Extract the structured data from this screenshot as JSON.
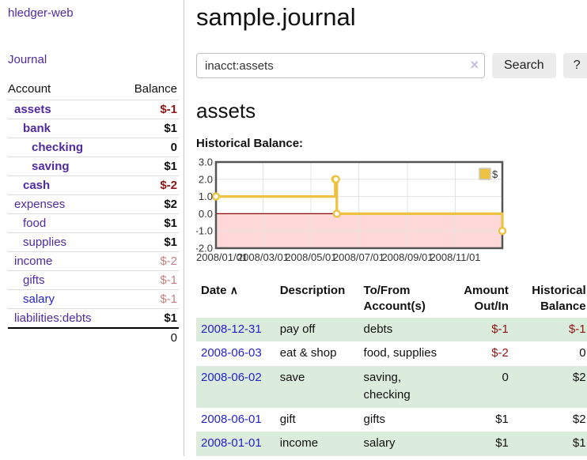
{
  "colors": {
    "purple": "#4f2aa3",
    "blue": "#2323cc",
    "dark_red": "#8f1414",
    "soft_red": "#c4807e",
    "row_stripe_green": "#dcecdc",
    "series_yellow": "#edc240",
    "negative_area_pink": "#ffd9d9",
    "zero_line_red": "#8b0000",
    "chart_border_gray": "#545454"
  },
  "sidebar": {
    "app_title": "hledger-web",
    "journal_link": "Journal",
    "accounts": {
      "headers": {
        "account": "Account",
        "balance": "Balance"
      },
      "rows": [
        {
          "name": "assets",
          "balance": "$-1"
        },
        {
          "name": "bank",
          "balance": "$1"
        },
        {
          "name": "checking",
          "balance": "0"
        },
        {
          "name": "saving",
          "balance": "$1"
        },
        {
          "name": "cash",
          "balance": "$-2"
        },
        {
          "name": "expenses",
          "balance": "$2"
        },
        {
          "name": "food",
          "balance": "$1"
        },
        {
          "name": "supplies",
          "balance": "$1"
        },
        {
          "name": "income",
          "balance": "$-2"
        },
        {
          "name": "gifts",
          "balance": "$-1"
        },
        {
          "name": "salary",
          "balance": "$-1"
        },
        {
          "name": "liabilities:debts",
          "balance": "$1"
        }
      ],
      "total": "0"
    }
  },
  "main": {
    "title": "sample.journal",
    "search": {
      "value": "inacct:assets",
      "clear_icon": "×",
      "search_button": "Search",
      "help_button": "?"
    },
    "account_heading": "assets",
    "chart_heading": "Historical Balance:"
  },
  "register": {
    "headers": [
      "Date",
      "Description",
      "To/From Account(s)",
      "Amount Out/In",
      "Historical Balance"
    ],
    "sort_icon": "∧",
    "rows": [
      {
        "date": "2008-12-31",
        "description": "pay off",
        "accounts": "debts",
        "amount": "$-1",
        "balance": "$-1"
      },
      {
        "date": "2008-06-03",
        "description": "eat & shop",
        "accounts": "food, supplies",
        "amount": "$-2",
        "balance": "0"
      },
      {
        "date": "2008-06-02",
        "description": "save",
        "accounts": "saving, checking",
        "amount": "0",
        "balance": "$2"
      },
      {
        "date": "2008-06-01",
        "description": "gift",
        "accounts": "gifts",
        "amount": "$1",
        "balance": "$2"
      },
      {
        "date": "2008-01-01",
        "description": "income",
        "accounts": "salary",
        "amount": "$1",
        "balance": "$1"
      }
    ]
  },
  "chart_data": {
    "type": "line",
    "step": true,
    "title": "Historical Balance:",
    "series": [
      {
        "name": "$",
        "color": "#edc240",
        "points": [
          {
            "date": "2008-01-01",
            "day": 0,
            "value": 1
          },
          {
            "date": "2008-06-01",
            "day": 152,
            "value": 2
          },
          {
            "date": "2008-06-02",
            "day": 153,
            "value": 2
          },
          {
            "date": "2008-06-03",
            "day": 154,
            "value": 0
          },
          {
            "date": "2008-12-31",
            "day": 365,
            "value": -1
          }
        ]
      }
    ],
    "xlim_days": [
      0,
      365
    ],
    "ylim": [
      -2,
      3
    ],
    "x_ticks": [
      {
        "label": "2008/01/01",
        "day": 0
      },
      {
        "label": "2008/03/01",
        "day": 60
      },
      {
        "label": "2008/05/01",
        "day": 121
      },
      {
        "label": "2008/07/01",
        "day": 182
      },
      {
        "label": "2008/09/01",
        "day": 244
      },
      {
        "label": "2008/11/01",
        "day": 305
      }
    ],
    "y_ticks": [
      {
        "label": "3.0",
        "value": 3
      },
      {
        "label": "2.0",
        "value": 2
      },
      {
        "label": "1.0",
        "value": 1
      },
      {
        "label": "0.0",
        "value": 0
      },
      {
        "label": "-1.0",
        "value": -1
      },
      {
        "label": "-2.0",
        "value": -2
      }
    ],
    "grid": true,
    "legend_position": "top-right",
    "negative_region_fill": "#ffd9d9",
    "zero_line_color": "#8b0000"
  }
}
